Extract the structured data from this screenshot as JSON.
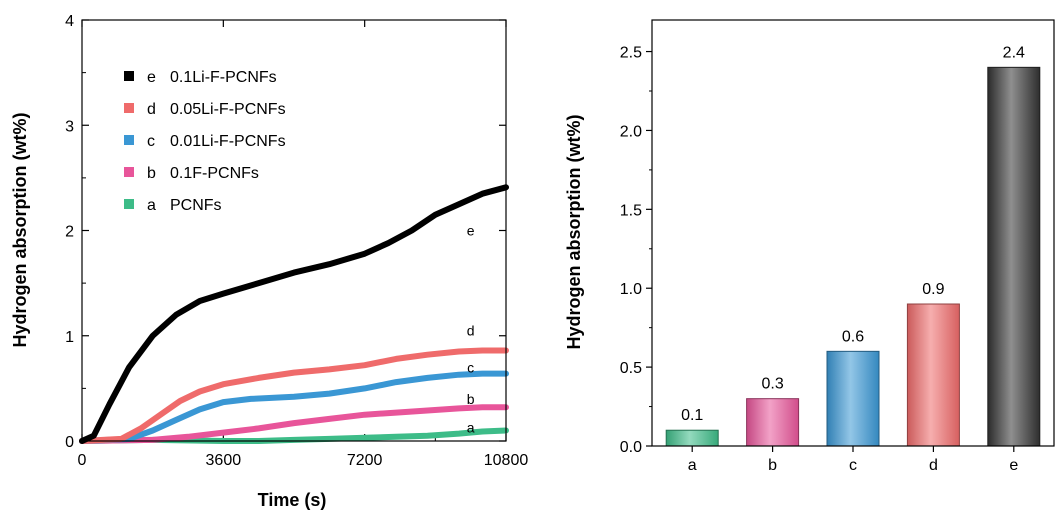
{
  "chart_data": [
    {
      "type": "line",
      "xlabel": "Time (s)",
      "ylabel": "Hydrogen absorption (wt%)",
      "xlim": [
        0,
        10800
      ],
      "ylim": [
        0,
        4
      ],
      "xticks": [
        "0",
        "3600",
        "7200",
        "10800"
      ],
      "yticks": [
        "0",
        "1",
        "2",
        "3",
        "4"
      ],
      "legend_position": "top-left",
      "series": [
        {
          "key": "e",
          "name": "0.1Li-F-PCNFs",
          "color": "#000000",
          "x": [
            0,
            300,
            700,
            1200,
            1800,
            2400,
            3000,
            3600,
            4500,
            5400,
            6300,
            7200,
            7800,
            8400,
            9000,
            9600,
            10200,
            10800
          ],
          "y": [
            0,
            0.05,
            0.35,
            0.7,
            1.0,
            1.2,
            1.33,
            1.4,
            1.5,
            1.6,
            1.68,
            1.78,
            1.88,
            2.0,
            2.15,
            2.25,
            2.35,
            2.41
          ]
        },
        {
          "key": "d",
          "name": "0.05Li-F-PCNFs",
          "color": "#ef6b6b",
          "x": [
            0,
            1000,
            1500,
            2000,
            2500,
            3000,
            3600,
            4500,
            5400,
            6300,
            7200,
            8000,
            8800,
            9600,
            10200,
            10800
          ],
          "y": [
            0,
            0.02,
            0.12,
            0.25,
            0.38,
            0.47,
            0.54,
            0.6,
            0.65,
            0.68,
            0.72,
            0.78,
            0.82,
            0.85,
            0.86,
            0.86
          ]
        },
        {
          "key": "c",
          "name": "0.01Li-F-PCNFs",
          "color": "#3a97d4",
          "x": [
            0,
            1200,
            1800,
            2400,
            3000,
            3600,
            4300,
            5400,
            6300,
            7200,
            8000,
            8800,
            9600,
            10200,
            10800
          ],
          "y": [
            0,
            0.02,
            0.1,
            0.2,
            0.3,
            0.37,
            0.4,
            0.42,
            0.45,
            0.5,
            0.56,
            0.6,
            0.63,
            0.64,
            0.64
          ]
        },
        {
          "key": "b",
          "name": "0.1F-PCNFs",
          "color": "#e8559a",
          "x": [
            0,
            1800,
            2700,
            3600,
            4500,
            5400,
            6300,
            7200,
            8000,
            8800,
            9600,
            10200,
            10800
          ],
          "y": [
            0,
            0.01,
            0.04,
            0.08,
            0.12,
            0.17,
            0.21,
            0.25,
            0.27,
            0.29,
            0.31,
            0.32,
            0.32
          ]
        },
        {
          "key": "a",
          "name": "PCNFs",
          "color": "#3dbc88",
          "x": [
            0,
            1800,
            3600,
            4500,
            5400,
            6300,
            7200,
            8000,
            8800,
            9600,
            10200,
            10800
          ],
          "y": [
            0,
            0.01,
            0.0,
            0.0,
            0.01,
            0.02,
            0.03,
            0.04,
            0.05,
            0.07,
            0.09,
            0.1
          ]
        }
      ],
      "curve_labels": [
        {
          "text": "e",
          "x": 9900,
          "y": 2.0
        },
        {
          "text": "d",
          "x": 9900,
          "y": 1.05
        },
        {
          "text": "c",
          "x": 9900,
          "y": 0.7
        },
        {
          "text": "b",
          "x": 9900,
          "y": 0.4
        },
        {
          "text": "a",
          "x": 9900,
          "y": 0.13
        }
      ]
    },
    {
      "type": "bar",
      "xlabel": "",
      "ylabel": "Hydrogen absorption (wt%)",
      "ylim": [
        0,
        2.7
      ],
      "yticks": [
        "0.0",
        "0.5",
        "1.0",
        "1.5",
        "2.0",
        "2.5"
      ],
      "categories": [
        "a",
        "b",
        "c",
        "d",
        "e"
      ],
      "values": [
        0.1,
        0.3,
        0.6,
        0.9,
        2.4
      ],
      "value_labels": [
        "0.1",
        "0.3",
        "0.6",
        "0.9",
        "2.4"
      ],
      "colors": [
        "#3dbc88",
        "#e8559a",
        "#3a97d4",
        "#ef6b6b",
        "#333333"
      ]
    }
  ]
}
